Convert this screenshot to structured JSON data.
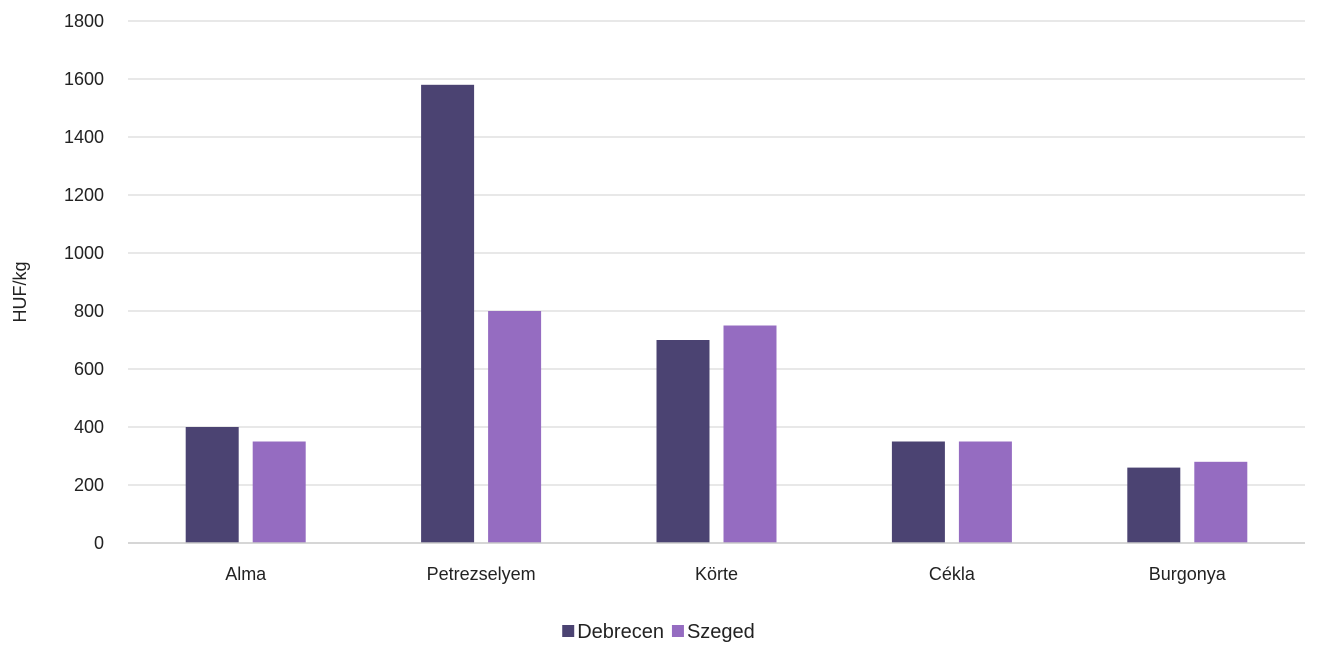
{
  "chart_data": {
    "type": "bar",
    "title": "",
    "xlabel": "",
    "ylabel": "HUF/kg",
    "categories": [
      "Alma",
      "Petrezselyem",
      "Körte",
      "Cékla",
      "Burgonya"
    ],
    "series": [
      {
        "name": "Debrecen",
        "color": "#4b4372",
        "values": [
          400,
          1580,
          700,
          350,
          260
        ]
      },
      {
        "name": "Szeged",
        "color": "#956cc1",
        "values": [
          350,
          800,
          750,
          350,
          280
        ]
      }
    ],
    "ylim": [
      0,
      1800
    ],
    "yticks": [
      0,
      200,
      400,
      600,
      800,
      1000,
      1200,
      1400,
      1600,
      1800
    ],
    "grid": true,
    "legend_position": "bottom-center"
  }
}
